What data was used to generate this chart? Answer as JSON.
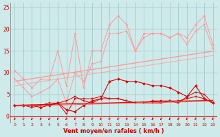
{
  "bg_color": "#ceeaea",
  "grid_color": "#aacfcf",
  "x_values": [
    0,
    1,
    2,
    3,
    4,
    5,
    6,
    7,
    8,
    9,
    10,
    11,
    12,
    13,
    14,
    15,
    16,
    17,
    18,
    19,
    20,
    21,
    22,
    23
  ],
  "xlabel": "Vent moyen/en rafales ( km/h )",
  "ylim": [
    0,
    26
  ],
  "yticks": [
    0,
    5,
    10,
    15,
    20,
    25
  ],
  "series_light_1": [
    10.5,
    8.5,
    6.5,
    8.5,
    8.5,
    15.0,
    7.0,
    19.0,
    6.5,
    15.0,
    15.0,
    21.0,
    23.0,
    21.0,
    15.0,
    19.0,
    19.0,
    19.0,
    18.0,
    19.0,
    18.0,
    21.0,
    23.0,
    16.5
  ],
  "series_light_2": [
    8.5,
    6.5,
    4.5,
    5.5,
    6.5,
    8.5,
    3.0,
    10.0,
    8.0,
    12.0,
    12.5,
    19.0,
    19.0,
    19.5,
    15.0,
    18.0,
    19.0,
    19.0,
    18.0,
    19.0,
    16.5,
    19.5,
    21.0,
    15.5
  ],
  "trend_light_1": [
    8.0,
    8.3,
    8.6,
    8.9,
    9.2,
    9.5,
    9.8,
    10.1,
    10.4,
    10.7,
    11.0,
    11.3,
    11.6,
    11.9,
    12.2,
    12.5,
    12.8,
    13.1,
    13.4,
    13.7,
    14.0,
    14.3,
    14.6,
    14.9
  ],
  "trend_light_2": [
    7.0,
    7.3,
    7.6,
    7.9,
    8.2,
    8.5,
    8.8,
    9.1,
    9.4,
    9.7,
    10.0,
    10.3,
    10.6,
    10.9,
    11.2,
    11.5,
    11.8,
    12.1,
    12.4,
    12.7,
    13.0,
    13.3,
    13.6,
    13.9
  ],
  "series_dark_1": [
    2.5,
    2.5,
    2.5,
    2.0,
    2.5,
    3.0,
    1.5,
    1.0,
    2.5,
    3.5,
    4.0,
    8.0,
    8.5,
    8.0,
    8.0,
    7.5,
    7.0,
    7.0,
    6.5,
    5.5,
    4.5,
    7.0,
    4.0,
    3.0
  ],
  "series_dark_2": [
    2.5,
    2.5,
    2.0,
    2.5,
    3.0,
    3.0,
    0.5,
    4.0,
    4.0,
    4.0,
    4.5,
    4.0,
    4.0,
    3.5,
    3.0,
    3.0,
    3.0,
    3.0,
    3.5,
    3.0,
    4.5,
    5.5,
    5.0,
    3.0
  ],
  "series_dark_3": [
    2.5,
    2.5,
    2.5,
    2.5,
    2.5,
    3.0,
    3.5,
    4.5,
    3.5,
    3.0,
    4.0,
    4.0,
    4.0,
    3.5,
    3.0,
    3.0,
    3.5,
    3.5,
    3.5,
    3.5,
    4.0,
    4.5,
    4.0,
    3.0
  ],
  "trend_dark_1": [
    2.5,
    2.55,
    2.6,
    2.65,
    2.7,
    2.75,
    2.8,
    2.85,
    2.9,
    2.95,
    3.0,
    3.05,
    3.1,
    3.15,
    3.2,
    3.25,
    3.3,
    3.35,
    3.4,
    3.45,
    3.5,
    3.55,
    3.6,
    3.65
  ],
  "trend_dark_2": [
    2.3,
    2.35,
    2.4,
    2.45,
    2.5,
    2.55,
    2.6,
    2.65,
    2.7,
    2.75,
    2.8,
    2.85,
    2.9,
    2.95,
    3.0,
    3.05,
    3.1,
    3.15,
    3.2,
    3.25,
    3.3,
    3.35,
    3.4,
    3.45
  ],
  "light_color": "#ff9999",
  "dark_color": "#dd0000",
  "arrow_color": "#cc0000",
  "text_color": "#cc0000",
  "spine_color": "#888888"
}
